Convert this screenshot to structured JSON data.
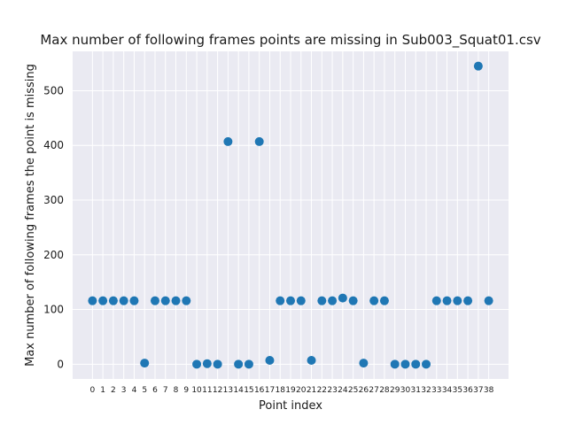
{
  "chart_data": {
    "type": "scatter",
    "title": "Max number of following frames points are missing in Sub003_Squat01.csv",
    "xlabel": "Point index",
    "ylabel": "Max number of following frames the point is missing",
    "x": [
      0,
      1,
      2,
      3,
      4,
      5,
      6,
      7,
      8,
      9,
      10,
      11,
      12,
      13,
      14,
      15,
      16,
      17,
      18,
      19,
      20,
      21,
      22,
      23,
      24,
      25,
      26,
      27,
      28,
      29,
      30,
      31,
      32,
      33,
      34,
      35,
      36,
      37,
      38
    ],
    "x_tick_labels": [
      "0",
      "1",
      "2",
      "3",
      "4",
      "5",
      "6",
      "7",
      "8",
      "9",
      "10",
      "11",
      "12",
      "13",
      "14",
      "15",
      "16",
      "17",
      "18",
      "19",
      "20",
      "21",
      "22",
      "23",
      "24",
      "25",
      "26",
      "27",
      "28",
      "29",
      "30",
      "31",
      "32",
      "33",
      "34",
      "35",
      "36",
      "37",
      "38"
    ],
    "y": [
      116,
      116,
      116,
      116,
      116,
      2,
      116,
      116,
      116,
      116,
      0,
      1,
      0,
      407,
      0,
      0,
      407,
      7,
      116,
      116,
      116,
      7,
      116,
      116,
      121,
      116,
      2,
      116,
      116,
      0,
      0,
      0,
      0,
      116,
      116,
      116,
      116,
      545,
      116
    ],
    "y_ticks": [
      0,
      100,
      200,
      300,
      400,
      500
    ],
    "ylim": [
      -27,
      572
    ],
    "xlim": [
      -1.9,
      39.9
    ],
    "grid": true,
    "colors": {
      "marker": "#1f77b4",
      "plot_background": "#eaeaf2",
      "grid": "#ffffff"
    }
  }
}
